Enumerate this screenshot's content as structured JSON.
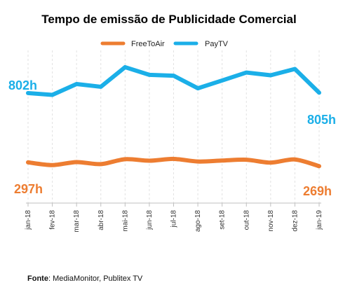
{
  "chart_data": {
    "type": "line",
    "title": "Tempo de emissão de Publicidade Comercial",
    "xlabel": "",
    "ylabel": "",
    "categories": [
      "jan-18",
      "fev-18",
      "mar-18",
      "abr-18",
      "mai-18",
      "jun-18",
      "jul-18",
      "ago-18",
      "set-18",
      "out-18",
      "nov-18",
      "dez-18",
      "jan-19"
    ],
    "ylim": [
      0,
      1200
    ],
    "grid": false,
    "legend_position": "top",
    "series": [
      {
        "name": "FreeToAir",
        "color": "#ED7D31",
        "values": [
          297,
          277,
          299,
          284,
          320,
          309,
          322,
          303,
          310,
          316,
          295,
          318,
          269
        ],
        "labels": [
          {
            "index": 0,
            "text": "297h"
          },
          {
            "index": 12,
            "text": "269h"
          }
        ]
      },
      {
        "name": "PayTV",
        "color": "#1BAFE8",
        "values": [
          802,
          789,
          868,
          848,
          991,
          935,
          929,
          837,
          894,
          952,
          932,
          978,
          805
        ],
        "labels": [
          {
            "index": 0,
            "text": "802h"
          },
          {
            "index": 12,
            "text": "805h"
          }
        ]
      }
    ]
  },
  "source": {
    "label": "Fonte",
    "text": ": MediaMonitor, Publitex TV"
  }
}
